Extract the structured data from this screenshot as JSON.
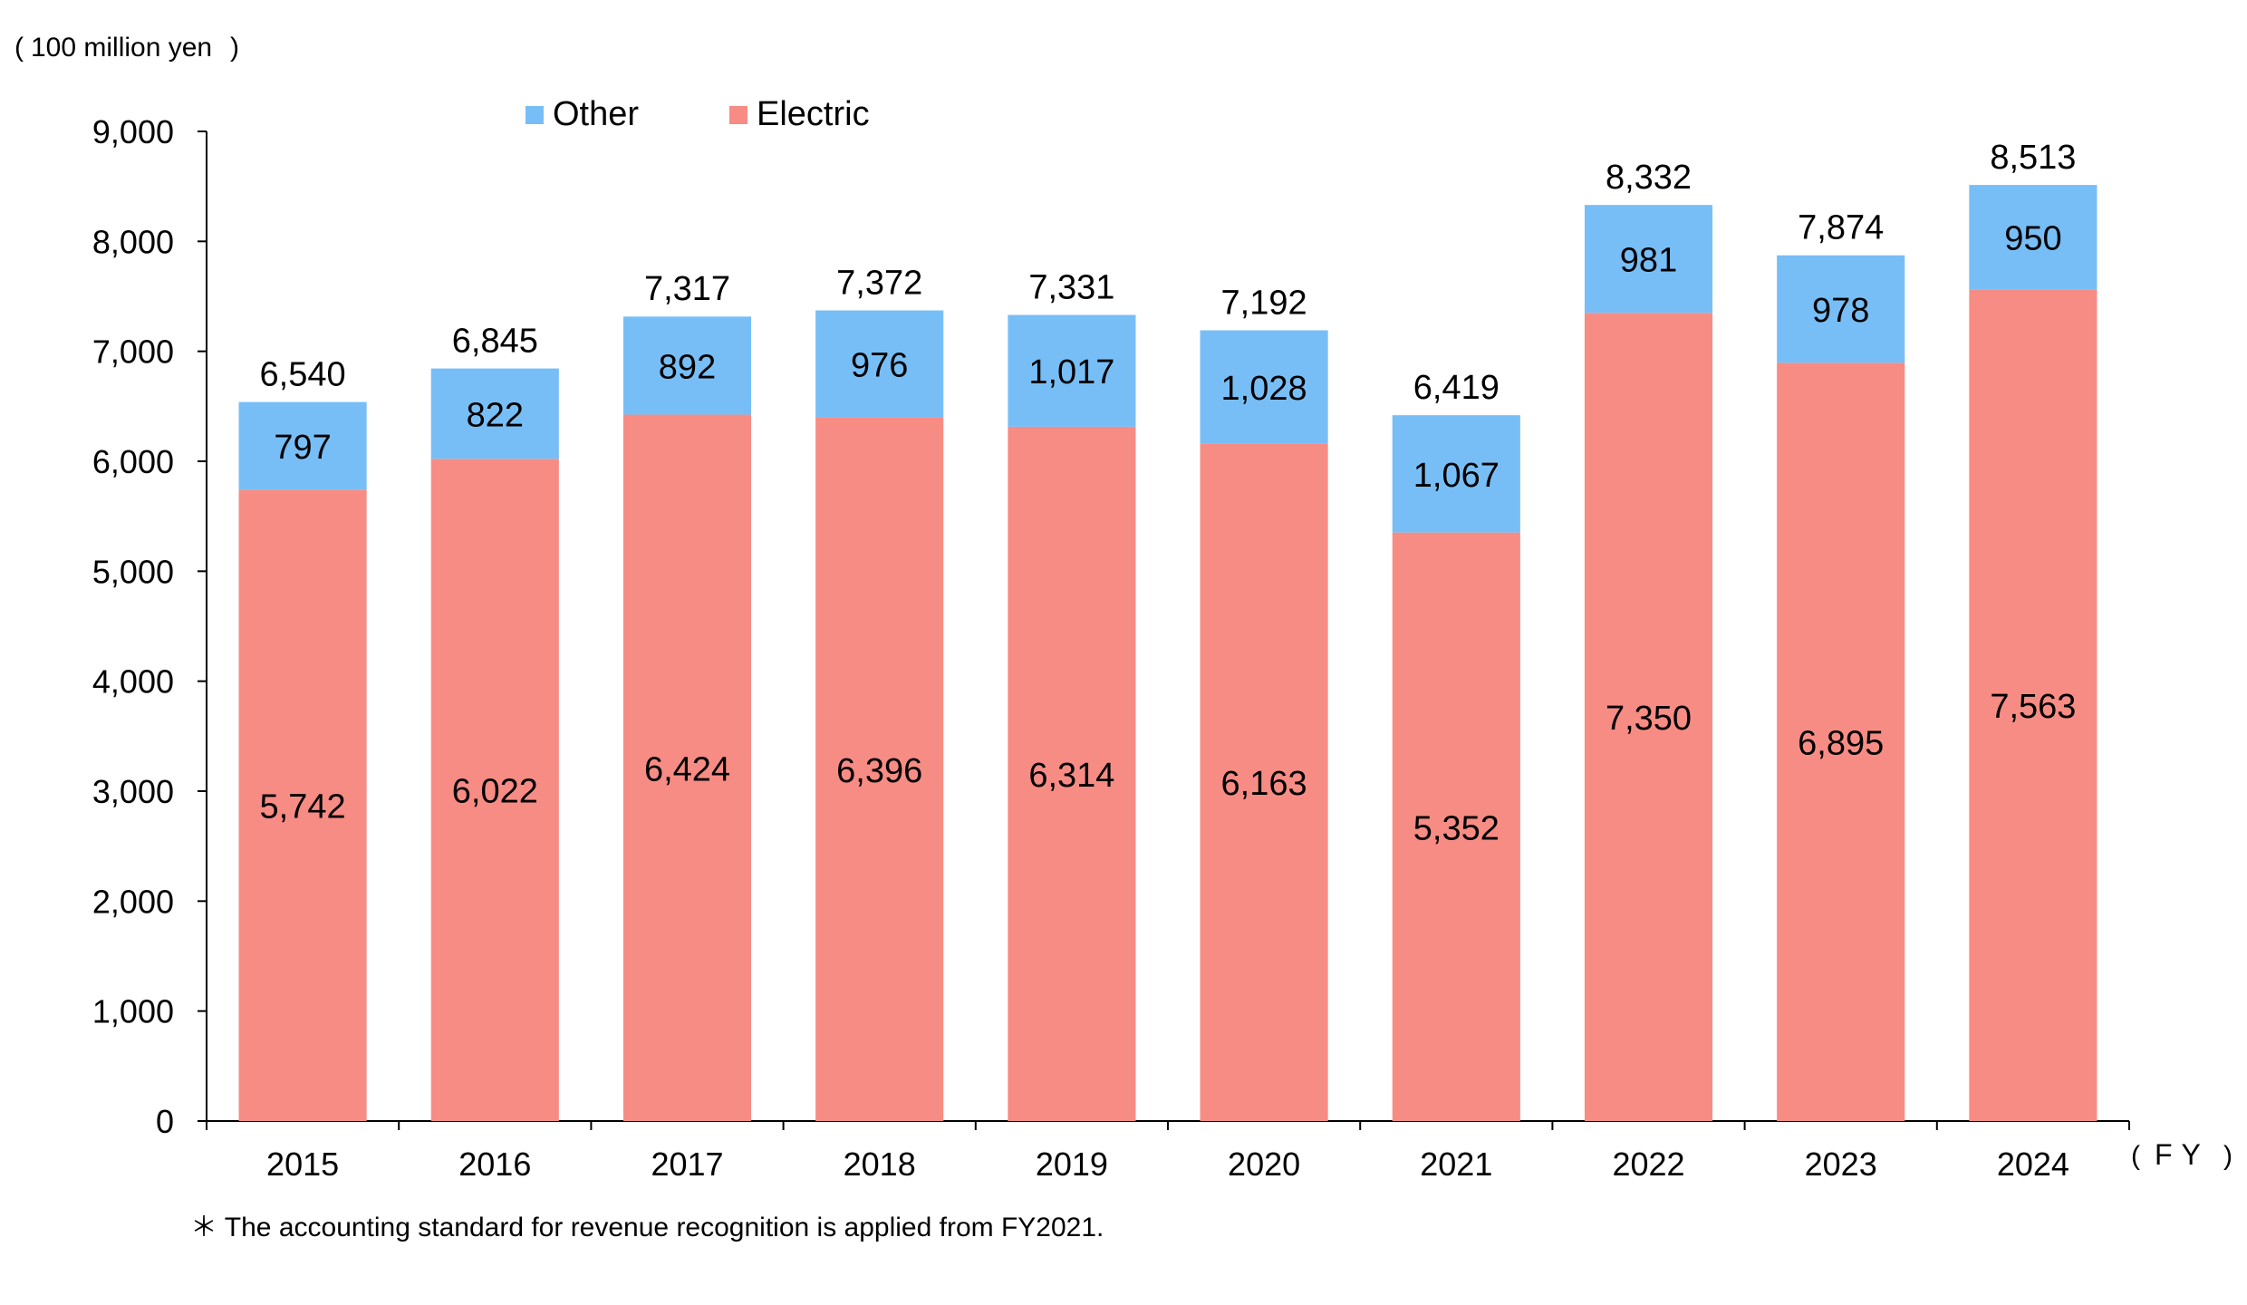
{
  "chart_data": {
    "type": "bar",
    "stacked": true,
    "unit_label": "100 million yen",
    "x_unit": "FY",
    "footnote": "＊ The accounting standard for revenue recognition is applied from FY2021.",
    "categories": [
      "2015",
      "2016",
      "2017",
      "2018",
      "2019",
      "2020",
      "2021",
      "2022",
      "2023",
      "2024"
    ],
    "series": [
      {
        "name": "Electric",
        "color": "#F78C84",
        "values": [
          5742,
          6022,
          6424,
          6396,
          6314,
          6163,
          5352,
          7350,
          6895,
          7563
        ],
        "labels": [
          "5,742",
          "6,022",
          "6,424",
          "6,396",
          "6,314",
          "6,163",
          "5,352",
          "7,350",
          "6,895",
          "7,563"
        ]
      },
      {
        "name": "Other",
        "color": "#78BEF6",
        "values": [
          797,
          822,
          892,
          976,
          1017,
          1028,
          1067,
          981,
          978,
          950
        ],
        "labels": [
          "797",
          "822",
          "892",
          "976",
          "1,017",
          "1,028",
          "1,067",
          "981",
          "978",
          "950"
        ]
      }
    ],
    "totals": [
      6540,
      6845,
      7317,
      7372,
      7331,
      7192,
      6419,
      8332,
      7874,
      8513
    ],
    "total_labels": [
      "6,540",
      "6,845",
      "7,317",
      "7,372",
      "7,331",
      "7,192",
      "6,419",
      "8,332",
      "7,874",
      "8,513"
    ],
    "ylim": [
      0,
      9000
    ],
    "yticks": [
      0,
      1000,
      2000,
      3000,
      4000,
      5000,
      6000,
      7000,
      8000,
      9000
    ],
    "ytick_labels": [
      "0",
      "1,000",
      "2,000",
      "3,000",
      "4,000",
      "5,000",
      "6,000",
      "7,000",
      "8,000",
      "9,000"
    ],
    "legend": {
      "placement": "top",
      "entries": [
        "Other",
        "Electric"
      ]
    },
    "grid": false
  }
}
